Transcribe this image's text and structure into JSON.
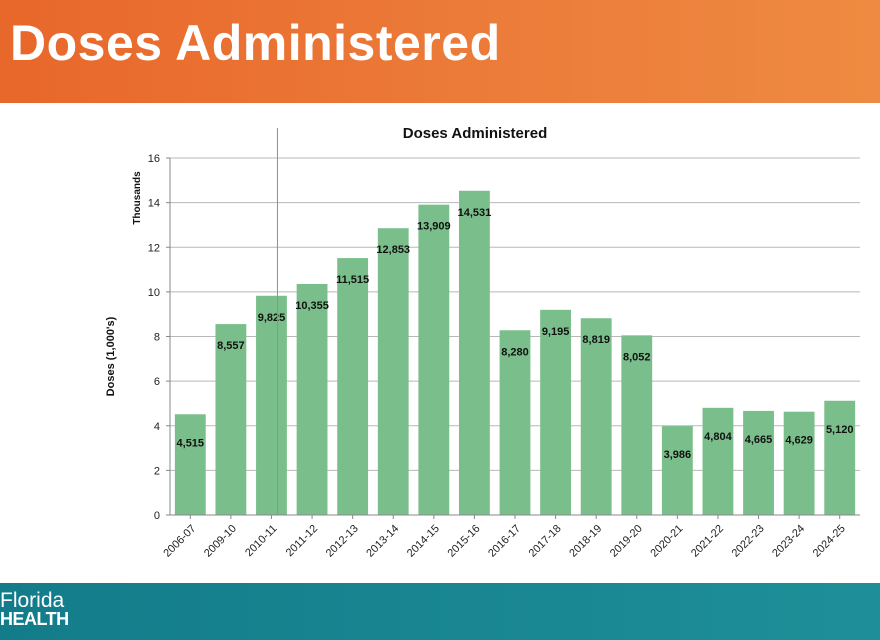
{
  "slide": {
    "title": "Doses Administered",
    "logo_line1": "Florida",
    "logo_line2": "HEALTH",
    "colors": {
      "header": "#e8672a",
      "footer": "#137c8a",
      "bar": "#7abf8b"
    }
  },
  "chart_data": {
    "type": "bar",
    "title": "Doses Administered",
    "ylabel": "Doses (1,000's)",
    "unit_label": "Thousands",
    "xlabel": "",
    "ylim": [
      0,
      16
    ],
    "yticks": [
      0,
      2,
      4,
      6,
      8,
      10,
      12,
      14,
      16
    ],
    "grid": true,
    "legend": "none",
    "categories": [
      "2006-07",
      "2009-10",
      "2010-11",
      "2011-12",
      "2012-13",
      "2013-14",
      "2014-15",
      "2015-16",
      "2016-17",
      "2017-18",
      "2018-19",
      "2019-20",
      "2020-21",
      "2021-22",
      "2022-23",
      "2023-24",
      "2024-25"
    ],
    "values": [
      4.515,
      8.557,
      9.825,
      10.355,
      11.515,
      12.853,
      13.909,
      14.531,
      8.28,
      9.195,
      8.819,
      8.052,
      3.986,
      4.804,
      4.665,
      4.629,
      5.12
    ],
    "data_labels": [
      "4,515",
      "8,557",
      "9,825",
      "10,355",
      "11,515",
      "12,853",
      "13,909",
      "14,531",
      "8,280",
      "9,195",
      "8,819",
      "8,052",
      "3,986",
      "4,804",
      "4,665",
      "4,629",
      "5,120"
    ]
  }
}
